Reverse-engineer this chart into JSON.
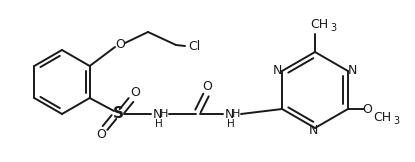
{
  "bg_color": "#ffffff",
  "line_color": "#1a1a1a",
  "lw": 1.4,
  "figsize": [
    4.15,
    1.62
  ],
  "dpi": 100,
  "xlim": [
    0,
    415
  ],
  "ylim": [
    0,
    162
  ]
}
